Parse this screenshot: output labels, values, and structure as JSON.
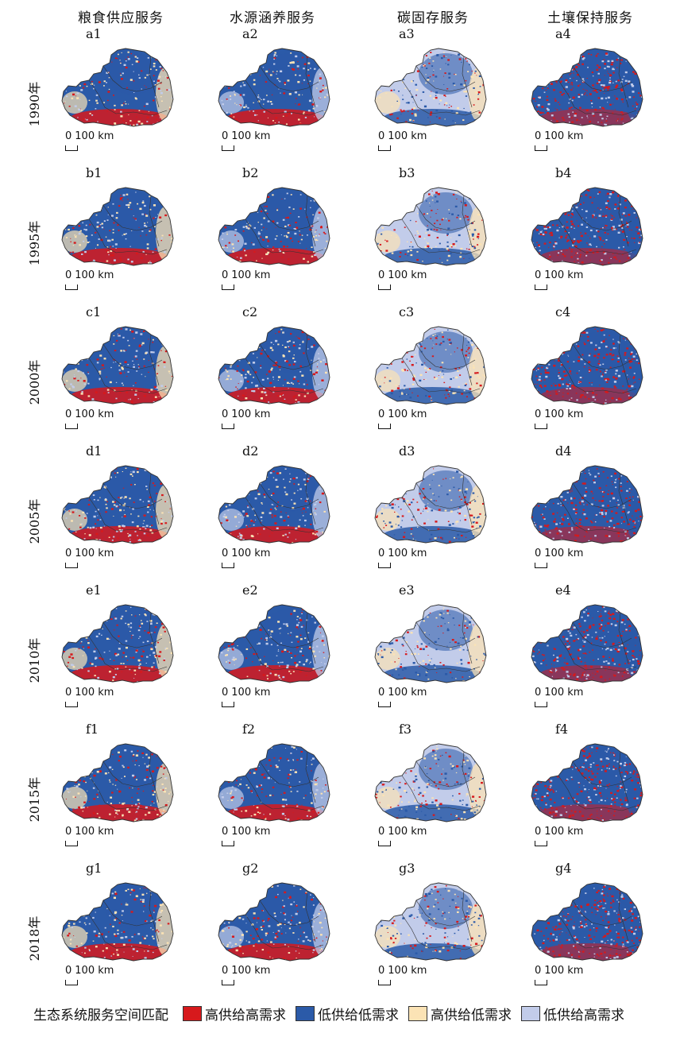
{
  "columns": [
    {
      "title": "粮食供应服务",
      "key": "food"
    },
    {
      "title": "水源涵养服务",
      "key": "water"
    },
    {
      "title": "碳固存服务",
      "key": "carbon"
    },
    {
      "title": "土壤保持服务",
      "key": "soil"
    }
  ],
  "years": [
    "1990年",
    "1995年",
    "2000年",
    "2005年",
    "2010年",
    "2015年",
    "2018年"
  ],
  "row_letters": [
    "a",
    "b",
    "c",
    "d",
    "e",
    "f",
    "g"
  ],
  "panels": [
    [
      "a1",
      "a2",
      "a3",
      "a4"
    ],
    [
      "b1",
      "b2",
      "b3",
      "b4"
    ],
    [
      "c1",
      "c2",
      "c3",
      "c4"
    ],
    [
      "d1",
      "d2",
      "d3",
      "d4"
    ],
    [
      "e1",
      "e2",
      "e3",
      "e4"
    ],
    [
      "f1",
      "f2",
      "f3",
      "f4"
    ],
    [
      "g1",
      "g2",
      "g3",
      "g4"
    ]
  ],
  "scale_bar": {
    "zero": "0",
    "distance": "100 km"
  },
  "legend": {
    "title": "生态系统服务空间匹配",
    "items": [
      {
        "label": "高供给高需求",
        "color": "#d7191c"
      },
      {
        "label": "低供给低需求",
        "color": "#2b5aa8"
      },
      {
        "label": "高供给低需求",
        "color": "#fbe3b5"
      },
      {
        "label": "低供给高需求",
        "color": "#c2ccea"
      }
    ]
  },
  "map_colors": {
    "high_high": "#d7191c",
    "low_low": "#2b5aa8",
    "high_low": "#fbe3b5",
    "low_high": "#c2ccea",
    "boundary": "#333333"
  }
}
